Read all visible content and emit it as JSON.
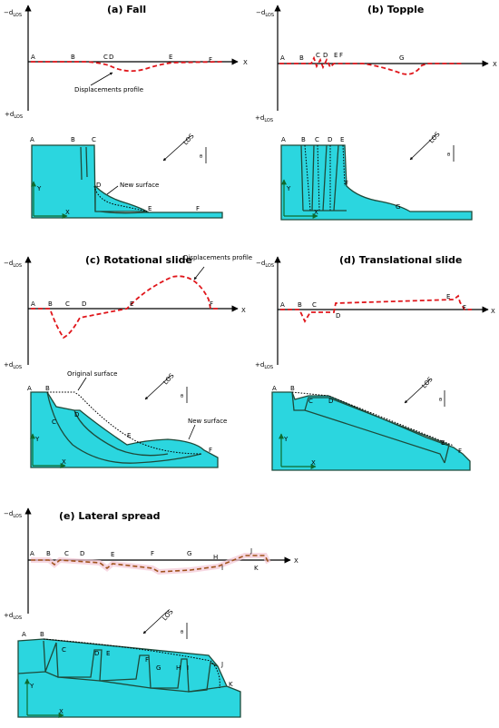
{
  "panels": {
    "a": {
      "title": "(a) Fall",
      "points_profile": [
        "A",
        "B",
        "C",
        "D",
        "E",
        "F"
      ],
      "points_section": [
        "A",
        "B",
        "C",
        "D",
        "E",
        "F"
      ],
      "note_profile": "Displacements profile",
      "note_surface": "New surface"
    },
    "b": {
      "title": "(b) Topple",
      "points_profile": [
        "A",
        "B",
        "C",
        "D",
        "E",
        "F",
        "G"
      ],
      "points_section": [
        "A",
        "B",
        "C",
        "D",
        "E",
        "F",
        "G"
      ]
    },
    "c": {
      "title": "(c) Rotational slide",
      "points_profile": [
        "A",
        "B",
        "C",
        "D",
        "E",
        "F"
      ],
      "points_section": [
        "A",
        "B",
        "C",
        "D",
        "E",
        "F"
      ],
      "note_profile": "Displacements profile",
      "note_original": "Original surface",
      "note_surface": "New surface"
    },
    "d": {
      "title": "(d) Translational slide",
      "points_profile": [
        "A",
        "B",
        "C",
        "D",
        "E",
        "F"
      ],
      "points_section": [
        "A",
        "B",
        "C",
        "D",
        "E",
        "F"
      ]
    },
    "e": {
      "title": "(e) Lateral spread",
      "points_profile": [
        "A",
        "B",
        "C",
        "D",
        "E",
        "F",
        "G",
        "H",
        "I",
        "J",
        "K"
      ],
      "points_section": [
        "A",
        "B",
        "C",
        "D",
        "E",
        "F",
        "G",
        "H",
        "I",
        "J",
        "K"
      ]
    }
  },
  "axes": {
    "x": "X",
    "y": "Y",
    "neg_d": "−d",
    "pos_d": "+d",
    "sub": "LOS",
    "los": "LOS",
    "theta": "θ"
  },
  "colors": {
    "slope": "#2bd6df",
    "profile": "#e0161b",
    "profile_lateral": "#a0521b",
    "outline": "#1e4a3a"
  }
}
